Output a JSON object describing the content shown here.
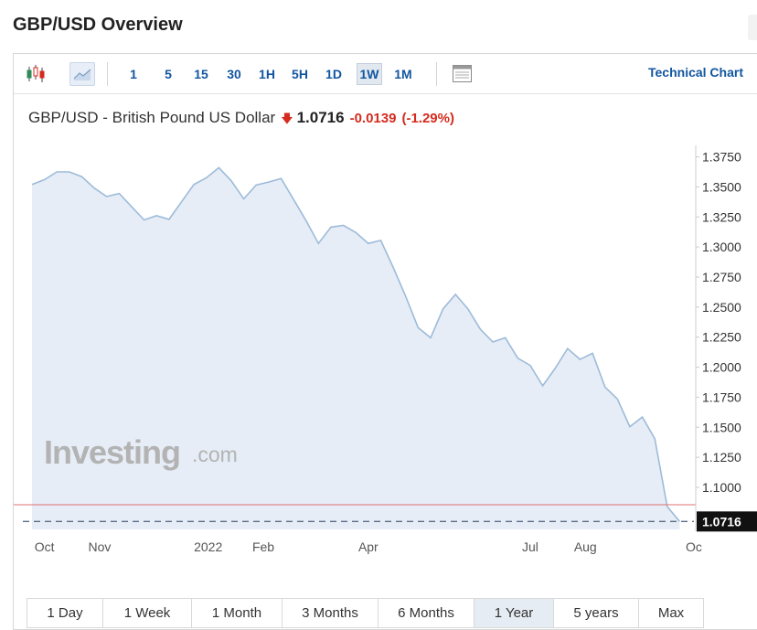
{
  "page": {
    "title": "GBP/USD Overview"
  },
  "toolbar": {
    "icons": [
      "candlestick-icon",
      "area-chart-icon",
      "indicator-table-icon"
    ],
    "timeframes": [
      "1",
      "5",
      "15",
      "30",
      "1H",
      "5H",
      "1D",
      "1W",
      "1M"
    ],
    "active_timeframe": "1W",
    "technical_chart_label": "Technical Chart"
  },
  "quote": {
    "name": "GBP/USD - British Pound US Dollar",
    "direction_icon": "down-arrow-icon",
    "price": "1.0716",
    "change": "-0.0139",
    "change_pct": "(-1.29%)",
    "down_color": "#d52b1e"
  },
  "watermark": {
    "brand": "Investing",
    "suffix": ".com"
  },
  "chart_data": {
    "type": "area",
    "x_tick_labels": [
      "Oct",
      "Nov",
      "2022",
      "Feb",
      "Apr",
      "Jul",
      "Aug",
      "Oc"
    ],
    "y_tick_labels": [
      "1.3750",
      "1.3500",
      "1.3250",
      "1.3000",
      "1.2750",
      "1.2500",
      "1.2250",
      "1.2000",
      "1.1750",
      "1.1500",
      "1.1250",
      "1.1000"
    ],
    "ylim": [
      1.065,
      1.3815
    ],
    "x_start": "2021-09-24",
    "x_end": "2022-10-01",
    "last_price": 1.0716,
    "last_price_label": "1.0716",
    "reference_line": 1.0855,
    "series": [
      {
        "values": [
          [
            "2021-09-24",
            1.352
          ],
          [
            "2021-10-01",
            1.356
          ],
          [
            "2021-10-08",
            1.3625
          ],
          [
            "2021-10-15",
            1.3625
          ],
          [
            "2021-10-22",
            1.3585
          ],
          [
            "2021-10-29",
            1.349
          ],
          [
            "2021-11-05",
            1.342
          ],
          [
            "2021-11-12",
            1.3445
          ],
          [
            "2021-11-19",
            1.3335
          ],
          [
            "2021-11-26",
            1.3225
          ],
          [
            "2021-12-03",
            1.326
          ],
          [
            "2021-12-10",
            1.323
          ],
          [
            "2021-12-17",
            1.3375
          ],
          [
            "2021-12-24",
            1.352
          ],
          [
            "2021-12-31",
            1.3575
          ],
          [
            "2022-01-07",
            1.366
          ],
          [
            "2022-01-14",
            1.355
          ],
          [
            "2022-01-21",
            1.34
          ],
          [
            "2022-01-28",
            1.3515
          ],
          [
            "2022-02-04",
            1.354
          ],
          [
            "2022-02-11",
            1.357
          ],
          [
            "2022-02-18",
            1.3395
          ],
          [
            "2022-02-25",
            1.322
          ],
          [
            "2022-03-04",
            1.303
          ],
          [
            "2022-03-11",
            1.3165
          ],
          [
            "2022-03-18",
            1.318
          ],
          [
            "2022-03-25",
            1.312
          ],
          [
            "2022-04-01",
            1.303
          ],
          [
            "2022-04-08",
            1.3055
          ],
          [
            "2022-04-15",
            1.283
          ],
          [
            "2022-04-22",
            1.259
          ],
          [
            "2022-04-29",
            1.233
          ],
          [
            "2022-05-06",
            1.2245
          ],
          [
            "2022-05-13",
            1.2485
          ],
          [
            "2022-05-20",
            1.2605
          ],
          [
            "2022-05-27",
            1.2485
          ],
          [
            "2022-06-03",
            1.2315
          ],
          [
            "2022-06-10",
            1.221
          ],
          [
            "2022-06-17",
            1.2245
          ],
          [
            "2022-06-24",
            1.2075
          ],
          [
            "2022-07-01",
            1.2015
          ],
          [
            "2022-07-08",
            1.1845
          ],
          [
            "2022-07-15",
            1.199
          ],
          [
            "2022-07-22",
            1.2155
          ],
          [
            "2022-07-29",
            1.2065
          ],
          [
            "2022-08-05",
            1.2115
          ],
          [
            "2022-08-12",
            1.1835
          ],
          [
            "2022-08-19",
            1.1735
          ],
          [
            "2022-08-26",
            1.1505
          ],
          [
            "2022-09-02",
            1.1585
          ],
          [
            "2022-09-09",
            1.1405
          ],
          [
            "2022-09-16",
            1.084
          ],
          [
            "2022-09-23",
            1.0716
          ]
        ]
      }
    ],
    "colors": {
      "line": "#9dbbd9",
      "area": "#e6edf6",
      "reference": "#e07070",
      "last_dash": "#5a6d85"
    },
    "grid": false
  },
  "ranges": {
    "items": [
      "1 Day",
      "1 Week",
      "1 Month",
      "3 Months",
      "6 Months",
      "1 Year",
      "5 years",
      "Max"
    ],
    "active": "1 Year"
  }
}
